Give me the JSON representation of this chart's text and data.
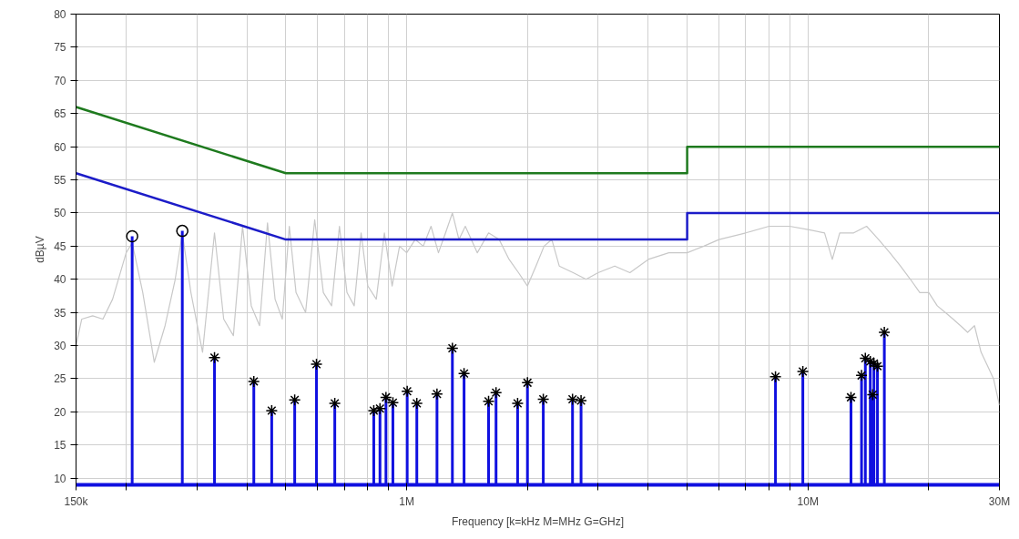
{
  "chart_data": {
    "type": "line",
    "xlabel": "Frequency [k=kHz M=MHz G=GHz]",
    "ylabel": "dBµV",
    "log": "x",
    "xlim": [
      150000,
      30000000
    ],
    "ylim": [
      9,
      80
    ],
    "xticks": [
      {
        "value": 150000,
        "label": "150k"
      },
      {
        "value": 200000,
        "label": null
      },
      {
        "value": 300000,
        "label": null
      },
      {
        "value": 400000,
        "label": null
      },
      {
        "value": 500000,
        "label": null
      },
      {
        "value": 600000,
        "label": null
      },
      {
        "value": 700000,
        "label": null
      },
      {
        "value": 800000,
        "label": null
      },
      {
        "value": 900000,
        "label": null
      },
      {
        "value": 1000000,
        "label": "1M"
      },
      {
        "value": 2000000,
        "label": null
      },
      {
        "value": 3000000,
        "label": null
      },
      {
        "value": 4000000,
        "label": null
      },
      {
        "value": 5000000,
        "label": null
      },
      {
        "value": 6000000,
        "label": null
      },
      {
        "value": 7000000,
        "label": null
      },
      {
        "value": 8000000,
        "label": null
      },
      {
        "value": 9000000,
        "label": null
      },
      {
        "value": 10000000,
        "label": "10M"
      },
      {
        "value": 20000000,
        "label": null
      },
      {
        "value": 30000000,
        "label": "30M"
      }
    ],
    "yticks": [
      10,
      15,
      20,
      25,
      30,
      35,
      40,
      45,
      50,
      55,
      60,
      65,
      70,
      75,
      80
    ],
    "grid": true,
    "series": [
      {
        "color": "#c8c8c8",
        "x": [
          150000,
          155000,
          165000,
          175000,
          185000,
          200000,
          207000,
          220000,
          235000,
          250000,
          265000,
          276000,
          290000,
          310000,
          332000,
          350000,
          370000,
          390000,
          410000,
          430000,
          450000,
          470000,
          490000,
          510000,
          530000,
          560000,
          590000,
          620000,
          650000,
          680000,
          710000,
          740000,
          770000,
          800000,
          840000,
          880000,
          920000,
          960000,
          1000000,
          1050000,
          1100000,
          1150000,
          1200000,
          1250000,
          1300000,
          1350000,
          1400000,
          1500000,
          1600000,
          1700000,
          1800000,
          1900000,
          2000000,
          2100000,
          2200000,
          2300000,
          2400000,
          2600000,
          2800000,
          3000000,
          3300000,
          3600000,
          4000000,
          4500000,
          5000000,
          5500000,
          6000000,
          7000000,
          8000000,
          9000000,
          10000000,
          11000000,
          11500000,
          12000000,
          13000000,
          14000000,
          15000000,
          16000000,
          17000000,
          18000000,
          19000000,
          20000000,
          21000000,
          22000000,
          23000000,
          24000000,
          25000000,
          26000000,
          27000000,
          28000000,
          29000000,
          30000000
        ],
        "values": [
          30,
          34,
          34.5,
          34,
          37,
          44,
          45.5,
          38,
          27.5,
          33,
          40,
          47,
          38,
          29,
          47,
          34,
          31.5,
          48,
          36,
          33,
          48.5,
          37,
          34,
          48,
          38,
          35,
          49,
          38,
          36,
          48,
          38,
          36,
          47,
          39,
          37,
          47,
          39,
          45,
          44,
          46,
          45,
          48,
          44,
          47,
          50,
          46,
          48,
          44,
          47,
          46,
          43,
          41,
          39,
          42,
          45,
          46,
          42,
          41,
          40,
          41,
          42,
          41,
          43,
          44,
          44,
          45,
          46,
          47,
          48,
          48,
          47.5,
          47,
          43,
          47,
          47,
          48,
          46,
          44,
          42,
          40,
          38,
          38,
          36,
          35,
          34,
          33,
          32,
          33,
          29,
          27,
          25,
          21
        ]
      },
      {
        "color": "#1e7a1e",
        "x": [
          150000,
          500000,
          5000000,
          5000000,
          30000000
        ],
        "values": [
          66,
          56,
          56,
          60,
          60
        ]
      },
      {
        "color": "#1c1cc8",
        "x": [
          150000,
          500000,
          5000000,
          5000000,
          30000000
        ],
        "values": [
          56,
          46,
          46,
          50,
          50
        ]
      },
      {
        "type": "bar",
        "color": "#1010e0",
        "x": [
          207000,
          276000
        ],
        "values": [
          46.5,
          47.3
        ]
      },
      {
        "type": "scatter",
        "color": "#000000",
        "marker": "circle",
        "x": [
          207000,
          276000
        ],
        "values": [
          46.5,
          47.3
        ]
      },
      {
        "type": "bar",
        "color": "#1010e0",
        "x": [
          332000,
          416000,
          461000,
          526000,
          596000,
          662000,
          828000,
          858000,
          888000,
          924000,
          1003000,
          1060000,
          1190000,
          1300000,
          1390000,
          1600000,
          1670000,
          1890000,
          2000000,
          2190000,
          2590000,
          2720000,
          8300000,
          9710000,
          12800000,
          13600000,
          13900000,
          14300000,
          14500000,
          14600000,
          14900000,
          15500000
        ],
        "values": [
          28.2,
          24.6,
          20.2,
          21.8,
          27.2,
          21.3,
          20.2,
          20.5,
          22.2,
          21.4,
          23.1,
          21.3,
          22.7,
          29.6,
          25.8,
          21.6,
          22.9,
          21.3,
          24.4,
          21.9,
          21.9,
          21.7,
          25.3,
          26.1,
          22.2,
          25.5,
          28.1,
          27.6,
          22.6,
          27.3,
          26.9,
          32.0
        ]
      },
      {
        "type": "scatter",
        "color": "#000000",
        "marker": "cross",
        "x": [
          332000,
          416000,
          461000,
          526000,
          596000,
          662000,
          828000,
          858000,
          888000,
          924000,
          1003000,
          1060000,
          1190000,
          1300000,
          1390000,
          1600000,
          1670000,
          1890000,
          2000000,
          2190000,
          2590000,
          2720000,
          8300000,
          9710000,
          12800000,
          13600000,
          13900000,
          14300000,
          14500000,
          14600000,
          14900000,
          15500000
        ],
        "values": [
          28.2,
          24.6,
          20.2,
          21.8,
          27.2,
          21.3,
          20.2,
          20.5,
          22.2,
          21.4,
          23.1,
          21.3,
          22.7,
          29.6,
          25.8,
          21.6,
          22.9,
          21.3,
          24.4,
          21.9,
          21.9,
          21.7,
          25.3,
          26.1,
          22.2,
          25.5,
          28.1,
          27.6,
          22.6,
          27.3,
          26.9,
          32.0
        ]
      }
    ]
  }
}
